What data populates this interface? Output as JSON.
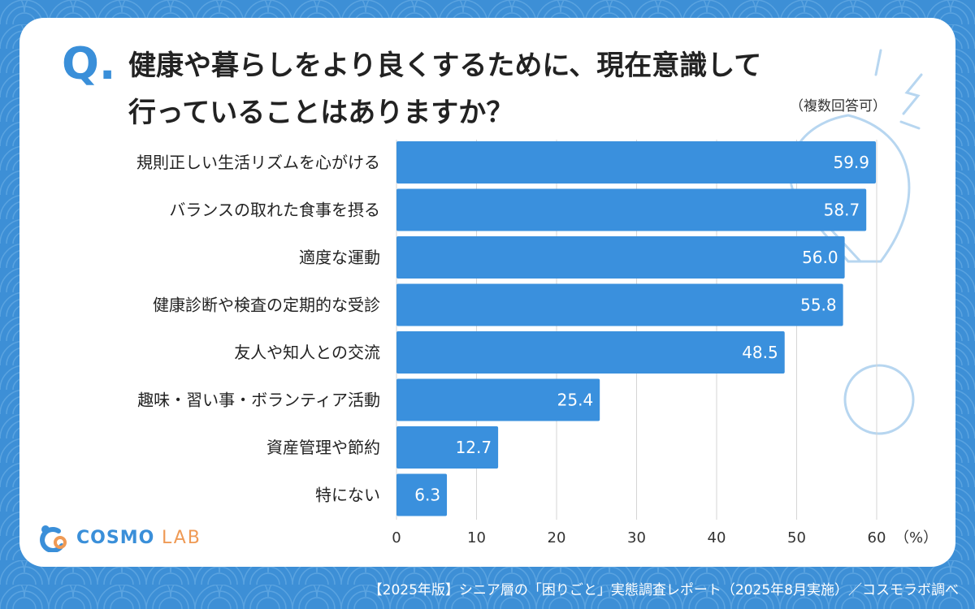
{
  "question": {
    "mark": "Q.",
    "line1": "健康や暮らしをより良くするために、現在意識して",
    "line2": "行っていることはありますか？",
    "note": "（複数回答可）"
  },
  "chart_data": {
    "type": "bar",
    "orientation": "horizontal",
    "categories": [
      "規則正しい生活リズムを心がける",
      "バランスの取れた食事を摂る",
      "適度な運動",
      "健康診断や検査の定期的な受診",
      "友人や知人との交流",
      "趣味・習い事・ボランティア活動",
      "資産管理や節約",
      "特にない"
    ],
    "values": [
      59.9,
      58.7,
      56.0,
      55.8,
      48.5,
      25.4,
      12.7,
      6.3
    ],
    "value_labels": [
      "59.9",
      "58.7",
      "56.0",
      "55.8",
      "48.5",
      "25.4",
      "12.7",
      "6.3"
    ],
    "xticks": [
      "0",
      "10",
      "20",
      "30",
      "40",
      "50",
      "60"
    ],
    "xlim": [
      0,
      60
    ],
    "xunit": "（%）",
    "grid": true,
    "bar_color": "#3a90dd"
  },
  "logo": {
    "text1": "COSMO",
    "text2": "LAB"
  },
  "footer": "【2025年版】シニア層の「困りごと」実態調査レポート（2025年8月実施）／コスモラボ調べ",
  "colors": {
    "background": "#3d8fd6",
    "accent": "#3a8fd9",
    "logo_orange": "#ef9a55"
  }
}
